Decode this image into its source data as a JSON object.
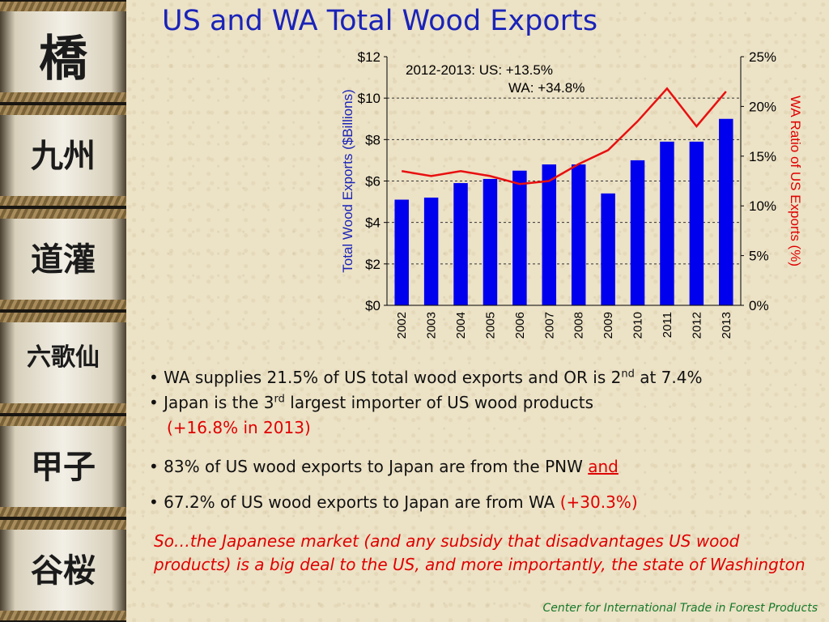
{
  "slide": {
    "title": "US and WA Total Wood Exports",
    "footer": "Center for International Trade in Forest Products"
  },
  "barrels": [
    {
      "glyph": "橋"
    },
    {
      "glyph": "九州"
    },
    {
      "glyph": "道灌"
    },
    {
      "glyph": "六歌仙"
    },
    {
      "glyph": "甲子"
    },
    {
      "glyph": "谷桜"
    }
  ],
  "bullets": [
    {
      "pre": "• WA supplies 21.5% of US total wood exports and OR is 2",
      "sup": "nd",
      "post": " at 7.4%"
    },
    {
      "pre": "• Japan is the 3",
      "sup": "rd",
      "post": " largest importer of US wood products"
    },
    {
      "line": "(+16.8% in 2013)"
    },
    {
      "pre": "• 83% of US wood exports to Japan are from the PNW ",
      "emph": "and"
    },
    {
      "pre": "• 67.2% of US wood exports to Japan are from WA ",
      "emph": "(+30.3%)"
    }
  ],
  "closing": "So…the Japanese market (and any subsidy that disadvantages US wood products) is a big deal to the US, and more importantly, the state of Washington",
  "colors": {
    "bars": "#0000ee",
    "line": "#e81010",
    "title": "#1a23b8",
    "footer": "#157a2a"
  },
  "chart_data": {
    "type": "bar",
    "categories": [
      "2002",
      "2003",
      "2004",
      "2005",
      "2006",
      "2007",
      "2008",
      "2009",
      "2010",
      "2011",
      "2012",
      "2013"
    ],
    "series": [
      {
        "values": [
          5.1,
          5.2,
          5.9,
          6.1,
          6.5,
          6.8,
          6.8,
          5.4,
          7.0,
          7.9,
          7.9,
          9.0
        ],
        "axis": "left",
        "type": "bar"
      },
      {
        "values": [
          13.5,
          13.0,
          13.5,
          13.0,
          12.2,
          12.5,
          14.2,
          15.6,
          18.5,
          21.8,
          18.0,
          21.5
        ],
        "axis": "right",
        "type": "line"
      }
    ],
    "ylabel": "Total Wood Exports ($Billions)",
    "y2label": "WA Ratio of US Exports (%)",
    "ylim": [
      0,
      12
    ],
    "y2lim": [
      0,
      25
    ],
    "yticks": [
      "$0",
      "$2",
      "$4",
      "$6",
      "$8",
      "$10",
      "$12"
    ],
    "y2ticks": [
      "0%",
      "5%",
      "10%",
      "15%",
      "20%",
      "25%"
    ],
    "annotation": [
      "2012-2013:  US: +13.5%",
      "WA: +34.8%"
    ],
    "grid": "dashed horizontal"
  }
}
